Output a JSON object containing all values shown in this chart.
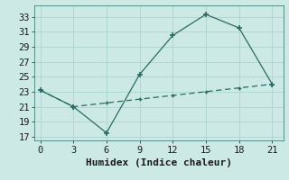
{
  "line1_x": [
    0,
    3,
    6,
    9,
    12,
    15,
    18,
    21
  ],
  "line1_y": [
    23.2,
    21.0,
    17.5,
    25.3,
    30.5,
    33.3,
    31.5,
    24.0
  ],
  "line2_x": [
    0,
    3,
    6,
    9,
    12,
    15,
    18,
    21
  ],
  "line2_y": [
    23.2,
    21.0,
    21.5,
    22.0,
    22.5,
    23.0,
    23.5,
    24.0
  ],
  "line_color": "#2a6b63",
  "bg_color": "#cce9e5",
  "grid_color": "#b0d8d3",
  "xlabel": "Humidex (Indice chaleur)",
  "xlim": [
    -0.5,
    22
  ],
  "ylim": [
    16.5,
    34.5
  ],
  "xticks": [
    0,
    3,
    6,
    9,
    12,
    15,
    18,
    21
  ],
  "yticks": [
    17,
    19,
    21,
    23,
    25,
    27,
    29,
    31,
    33
  ],
  "xlabel_fontsize": 8,
  "tick_fontsize": 7.5
}
